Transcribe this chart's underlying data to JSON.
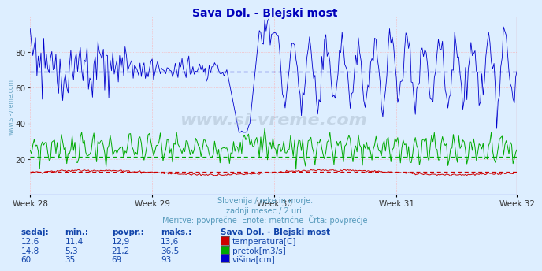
{
  "title": "Sava Dol. - Blejski most",
  "title_color": "#0000bb",
  "background_color": "#ddeeff",
  "plot_bg_color": "#ddeeff",
  "xlabel_weeks": [
    "Week 28",
    "Week 29",
    "Week 30",
    "Week 31",
    "Week 32"
  ],
  "ylim": [
    0,
    100
  ],
  "yticks": [
    20,
    40,
    60,
    80
  ],
  "grid_color": "#ffaaaa",
  "avg_blue": 69,
  "avg_green": 21.2,
  "avg_red": 12.9,
  "temp_color": "#cc0000",
  "flow_color": "#00aa00",
  "height_color": "#0000cc",
  "watermark": "www.si-vreme.com",
  "subtitle1": "Slovenija / reke in morje.",
  "subtitle2": "zadnji mesec / 2 uri.",
  "subtitle3": "Meritve: povprečne  Enote: metrične  Črta: povprečje",
  "subtitle_color": "#5599bb",
  "table_header_labels": [
    "sedaj:",
    "min.:",
    "povpr.:",
    "maks.:"
  ],
  "table_color": "#1144aa",
  "station_name": "Sava Dol. - Blejski most",
  "rows": [
    {
      "sedaj": "12,6",
      "min": "11,4",
      "povpr": "12,9",
      "maks": "13,6",
      "label": "temperatura[C]",
      "color": "#cc0000"
    },
    {
      "sedaj": "14,8",
      "min": "5,3",
      "povpr": "21,2",
      "maks": "36,5",
      "label": "pretok[m3/s]",
      "color": "#00aa00"
    },
    {
      "sedaj": "60",
      "min": "35",
      "povpr": "69",
      "maks": "93",
      "label": "višina[cm]",
      "color": "#0000cc"
    }
  ],
  "n_points": 360,
  "side_watermark": "www.si-vreme.com"
}
